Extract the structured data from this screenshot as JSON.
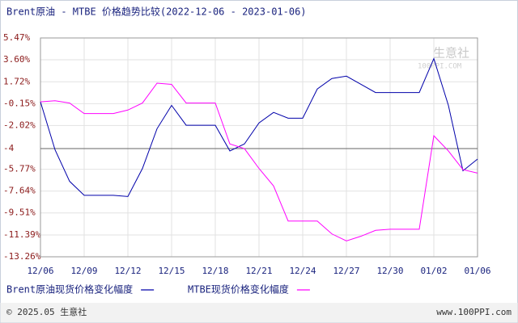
{
  "chart_data": {
    "type": "line",
    "title": "Brent原油 - MTBE 价格趋势比较(2022-12-06 - 2023-01-06)",
    "categories": [
      "12/06",
      null,
      null,
      "12/09",
      null,
      null,
      "12/12",
      null,
      null,
      "12/15",
      null,
      null,
      "12/18",
      null,
      null,
      "12/21",
      null,
      null,
      "12/24",
      null,
      null,
      "12/27",
      null,
      null,
      "12/30",
      null,
      null,
      "01/02",
      null,
      null,
      "01/06"
    ],
    "series": [
      {
        "name": "Brent原油现货价格变化幅度",
        "color": "#0000aa",
        "values": [
          0,
          -4.1,
          -6.8,
          -8.0,
          -8.0,
          -8.0,
          -8.1,
          -5.7,
          -2.3,
          -0.3,
          -2.0,
          -2.0,
          -2.0,
          -4.2,
          -3.6,
          -1.8,
          -0.9,
          -1.4,
          -1.4,
          1.1,
          2.0,
          2.2,
          1.5,
          0.8,
          0.8,
          0.8,
          0.8,
          3.7,
          -0.3,
          -5.9,
          -4.9
        ]
      },
      {
        "name": "MTBE现货价格变化幅度",
        "color": "#ff00ff",
        "values": [
          0,
          0.1,
          -0.1,
          -1.0,
          -1.0,
          -1.0,
          -0.7,
          -0.1,
          1.6,
          1.5,
          -0.1,
          -0.1,
          -0.1,
          -3.6,
          -4.0,
          -5.7,
          -7.2,
          -10.2,
          -10.2,
          -10.2,
          -11.3,
          -11.9,
          -11.5,
          -11.0,
          -10.9,
          -10.9,
          -10.9,
          -2.9,
          -4.2,
          -5.8,
          -6.1
        ]
      }
    ],
    "ylim": [
      -13.26,
      5.47
    ],
    "yticks": [
      {
        "value": -13.26,
        "label": "-13.26%"
      },
      {
        "value": -11.39,
        "label": "-11.39%"
      },
      {
        "value": -9.51,
        "label": "-9.51%"
      },
      {
        "value": -7.64,
        "label": "-7.64%"
      },
      {
        "value": -5.77,
        "label": "-5.77%"
      },
      -4,
      {
        "value": -2.02,
        "label": "-2.02%"
      },
      {
        "value": -0.15,
        "label": "-0.15%"
      },
      {
        "value": 1.72,
        "label": "1.72%"
      },
      {
        "value": 3.6,
        "label": "3.60%"
      },
      {
        "value": 5.47,
        "label": "5.47%"
      }
    ],
    "reference_line": -4,
    "grid": true,
    "watermark": [
      "生意社",
      "100PPI.COM"
    ],
    "footer_left": "© 2025.05 生意社",
    "footer_right": "www.100PPI.com"
  }
}
